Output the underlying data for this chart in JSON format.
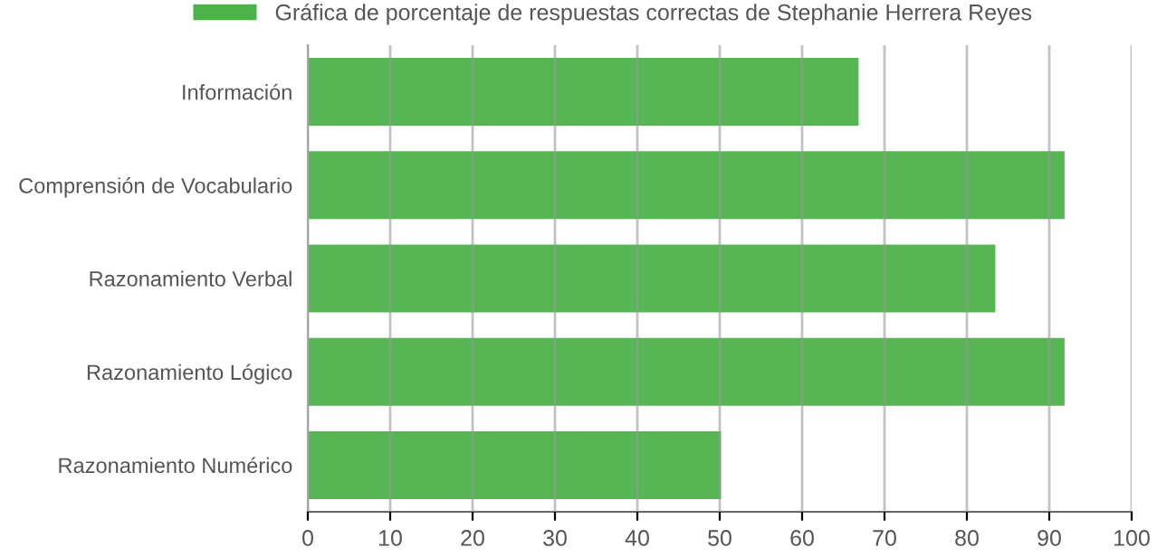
{
  "chart_data": {
    "type": "bar",
    "orientation": "horizontal",
    "categories": [
      "Información",
      "Comprensión de Vocabulario",
      "Razonamiento Verbal",
      "Razonamiento Lógico",
      "Razonamiento Numérico"
    ],
    "series": [
      {
        "name": "Gráfica de porcentaje de respuestas correctas de Stephanie Herrera Reyes",
        "color": "#4cb34a",
        "values": [
          66.7,
          91.7,
          83.3,
          91.7,
          50
        ]
      }
    ],
    "xlim": [
      0,
      100
    ],
    "xticks": [
      0,
      10,
      20,
      30,
      40,
      50,
      60,
      70,
      80,
      90,
      100
    ],
    "grid": "x",
    "legend": "top"
  }
}
